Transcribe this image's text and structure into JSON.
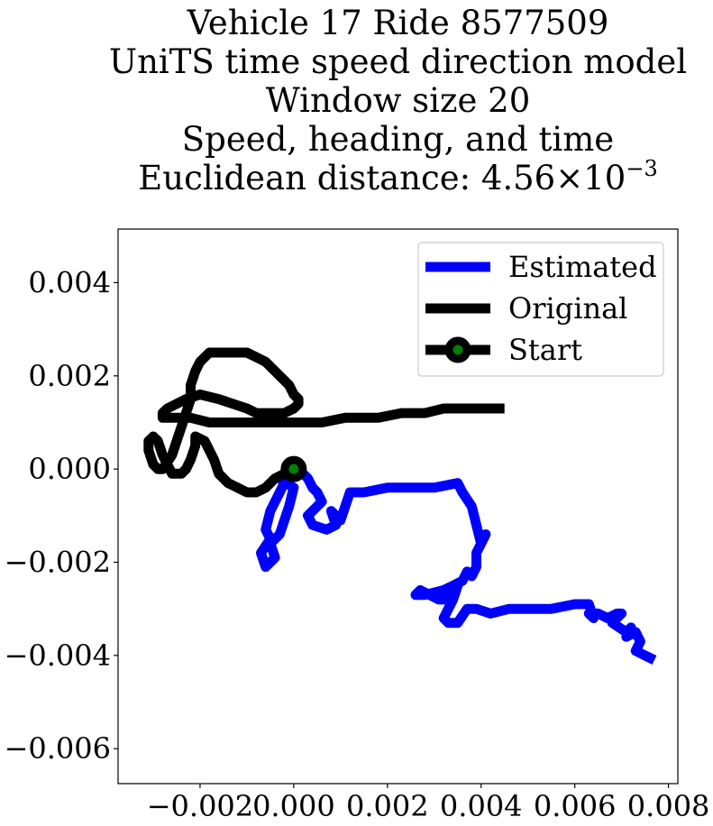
{
  "chart_data": {
    "type": "line",
    "title_lines": [
      "Vehicle 17 Ride 8577509",
      "UniTS time speed direction model",
      "Window size 20",
      "Speed, heading, and time"
    ],
    "title_metric_prefix": "Euclidean distance: 4.56",
    "title_metric_times": "×",
    "title_metric_base": "10",
    "title_metric_exponent": "−3",
    "xlim": [
      -0.00375,
      0.0082
    ],
    "ylim": [
      -0.00675,
      0.00515
    ],
    "x_ticks": [
      -0.002,
      0.0,
      0.002,
      0.004,
      0.006,
      0.008
    ],
    "x_tick_labels": [
      "−0.002",
      "0.000",
      "0.002",
      "0.004",
      "0.006",
      "0.008"
    ],
    "y_ticks": [
      0.004,
      0.002,
      0.0,
      -0.002,
      -0.004,
      -0.006
    ],
    "y_tick_labels": [
      "0.004",
      "0.002",
      "0.000",
      "−0.002",
      "−0.004",
      "−0.006"
    ],
    "grid": false,
    "legend_position": "upper right",
    "series": [
      {
        "name": "Estimated",
        "color": "#0000ff",
        "x": [
          0.0,
          -0.0001,
          -0.0003,
          -0.0005,
          -0.0006,
          -0.0005,
          -0.0007,
          -0.0006,
          -0.0004,
          -0.0005,
          -0.0003,
          -0.0002,
          -0.0001,
          0.0,
          -0.0003,
          -0.0002,
          -0.0001,
          0.0001,
          0.0002,
          0.0003,
          0.0004,
          0.0005,
          0.0006,
          0.0005,
          0.0004,
          0.0003,
          0.0004,
          0.0007,
          0.0009,
          0.0008,
          0.001,
          0.0011,
          0.0012,
          0.0013,
          0.0015,
          0.002,
          0.0025,
          0.003,
          0.0035,
          0.0036,
          0.0038,
          0.0039,
          0.004,
          0.0041,
          0.0039,
          0.0039,
          0.0038,
          0.0037,
          0.0036,
          0.0034,
          0.0032,
          0.0028,
          0.0026,
          0.0027,
          0.0029,
          0.0031,
          0.0032,
          0.0033,
          0.0035,
          0.0034,
          0.0032,
          0.0033,
          0.0035,
          0.0037,
          0.0039,
          0.0042,
          0.0046,
          0.005,
          0.0055,
          0.006,
          0.0063,
          0.0064,
          0.0063,
          0.0065,
          0.0067,
          0.0069,
          0.007,
          0.0068,
          0.0071,
          0.0072,
          0.0071,
          0.0073,
          0.0074,
          0.0073,
          0.0075,
          0.0077
        ],
        "y": [
          0.0,
          -0.0001,
          -0.0005,
          -0.0009,
          -0.0013,
          -0.0015,
          -0.0018,
          -0.0021,
          -0.0019,
          -0.0016,
          -0.0014,
          -0.0011,
          -0.0008,
          -0.0004,
          -0.0002,
          -0.0001,
          0.0,
          0.0,
          -0.0001,
          -0.0002,
          -0.0004,
          -0.0005,
          -0.0007,
          -0.0008,
          -0.0009,
          -0.001,
          -0.0012,
          -0.0013,
          -0.0012,
          -0.0009,
          -0.0011,
          -0.0008,
          -0.0005,
          -0.0005,
          -0.0005,
          -0.0004,
          -0.0004,
          -0.0004,
          -0.0003,
          -0.0005,
          -0.0008,
          -0.0012,
          -0.0016,
          -0.0014,
          -0.0018,
          -0.0021,
          -0.0023,
          -0.0022,
          -0.0024,
          -0.0025,
          -0.0026,
          -0.0027,
          -0.0027,
          -0.0026,
          -0.0027,
          -0.0028,
          -0.0028,
          -0.0026,
          -0.0025,
          -0.0028,
          -0.0032,
          -0.0033,
          -0.0033,
          -0.003,
          -0.003,
          -0.0031,
          -0.003,
          -0.003,
          -0.003,
          -0.0029,
          -0.0029,
          -0.0032,
          -0.0031,
          -0.0031,
          -0.0032,
          -0.0031,
          -0.0031,
          -0.0033,
          -0.0035,
          -0.0034,
          -0.0036,
          -0.0035,
          -0.0037,
          -0.0039,
          -0.004,
          -0.0041
        ]
      },
      {
        "name": "Original",
        "color": "#000000",
        "x": [
          0.0,
          -0.0002,
          -0.0004,
          -0.0006,
          -0.0008,
          -0.001,
          -0.0012,
          -0.0014,
          -0.0016,
          -0.0017,
          -0.0018,
          -0.0019,
          -0.0021,
          -0.0021,
          -0.0022,
          -0.0023,
          -0.0023,
          -0.0024,
          -0.0025,
          -0.0026,
          -0.0027,
          -0.0028,
          -0.0029,
          -0.003,
          -0.0031,
          -0.0031,
          -0.003,
          -0.0029,
          -0.0028,
          -0.0026,
          -0.0025,
          -0.0024,
          -0.0023,
          -0.0022,
          -0.0022,
          -0.0021,
          -0.002,
          -0.0019,
          -0.0018,
          -0.0015,
          -0.001,
          -0.0008,
          -0.0006,
          -0.0004,
          -0.0003,
          -0.0001,
          0.0,
          0.0001,
          0.0001,
          0.0,
          -0.0002,
          -0.0004,
          -0.0006,
          -0.0008,
          -0.001,
          -0.0013,
          -0.0016,
          -0.002,
          -0.0023,
          -0.0025,
          -0.0027,
          -0.0028,
          -0.0028,
          -0.0027,
          -0.0025,
          -0.0022,
          -0.0018,
          -0.0014,
          -0.0008,
          0.0,
          0.0006,
          0.0011,
          0.0015,
          0.0018,
          0.0023,
          0.0028,
          0.0032,
          0.0037,
          0.0041,
          0.0045
        ],
        "y": [
          0.0,
          -0.0001,
          -0.0002,
          -0.0004,
          -0.0005,
          -0.0005,
          -0.0004,
          -0.0003,
          -0.0001,
          0.0002,
          0.0004,
          0.0006,
          0.0007,
          0.0005,
          0.0002,
          0.0,
          0.0,
          -0.0001,
          -0.0001,
          -0.0001,
          0.0001,
          0.0003,
          0.0006,
          0.0007,
          0.0006,
          0.0004,
          0.0001,
          0.0,
          0.0,
          0.0003,
          0.0006,
          0.0009,
          0.0012,
          0.0015,
          0.0018,
          0.0021,
          0.0023,
          0.0024,
          0.0025,
          0.0025,
          0.0025,
          0.0024,
          0.0023,
          0.0021,
          0.002,
          0.0018,
          0.0016,
          0.0015,
          0.0014,
          0.0013,
          0.0012,
          0.0012,
          0.0012,
          0.0012,
          0.0013,
          0.0014,
          0.0015,
          0.0016,
          0.0015,
          0.0014,
          0.0013,
          0.0012,
          0.0011,
          0.0011,
          0.0011,
          0.0011,
          0.001,
          0.001,
          0.001,
          0.001,
          0.001,
          0.0011,
          0.0011,
          0.0011,
          0.0012,
          0.0012,
          0.0013,
          0.0013,
          0.0013,
          0.0013
        ]
      }
    ],
    "start_marker": {
      "label": "Start",
      "x": 0.0,
      "y": 0.0,
      "face_color": "#008000",
      "edge_color": "#000000"
    },
    "legend_entries": [
      "Estimated",
      "Original",
      "Start"
    ]
  }
}
